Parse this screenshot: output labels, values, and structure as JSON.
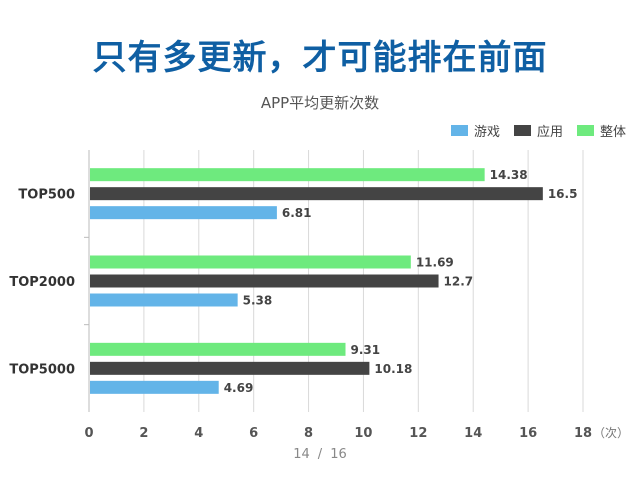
{
  "headline": "只有多更新，才可能排在前面",
  "pager": {
    "current": "14",
    "separator": "/",
    "total": "16"
  },
  "chart_data": {
    "type": "bar",
    "orientation": "horizontal",
    "title": "APP平均更新次数",
    "categories": [
      "TOP500",
      "TOP2000",
      "TOP5000"
    ],
    "series": [
      {
        "name": "游戏",
        "color": "#63b4e8",
        "values": [
          6.81,
          5.38,
          4.69
        ]
      },
      {
        "name": "应用",
        "color": "#444444",
        "values": [
          16.5,
          12.7,
          10.18
        ]
      },
      {
        "name": "整体",
        "color": "#6eea7e",
        "values": [
          14.38,
          11.69,
          9.31
        ]
      }
    ],
    "data_labels": [
      [
        "6.81",
        "16.5",
        "14.38"
      ],
      [
        "5.38",
        "12.7",
        "11.69"
      ],
      [
        "4.69",
        "10.18",
        "9.31"
      ]
    ],
    "xlim": [
      0,
      18
    ],
    "xticks": [
      "0",
      "2",
      "4",
      "6",
      "8",
      "10",
      "12",
      "14",
      "16",
      "18"
    ],
    "xunit": "（次）",
    "grid": true,
    "legend_position": "top-right"
  }
}
